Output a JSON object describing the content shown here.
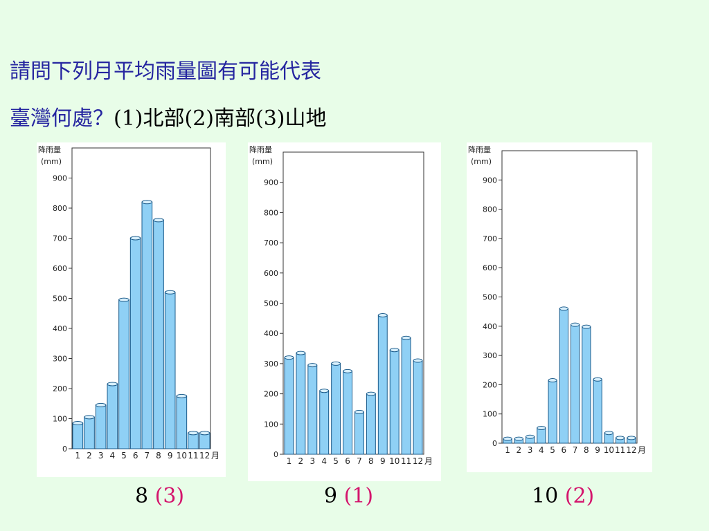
{
  "question": {
    "line1": "請問下列月平均雨量圖有可能代表",
    "line2_prefix": "臺灣何處？",
    "line2_rest": "(1)北部(2)南部(3)山地"
  },
  "answers": [
    {
      "num": "8",
      "choice": "(3)"
    },
    {
      "num": "9",
      "choice": "(1)"
    },
    {
      "num": "10",
      "choice": "(2)"
    }
  ],
  "colors": {
    "background": "#e8fde8",
    "question_text": "#2525a0",
    "answer_highlight": "#d4146c",
    "bar_fill": "#8fd0f5",
    "bar_top": "#d8f0fd"
  },
  "chart_data": [
    {
      "type": "bar",
      "ylabel": "降雨量",
      "yunit": "(mm)",
      "xunit": "月",
      "categories": [
        "1",
        "2",
        "3",
        "4",
        "5",
        "6",
        "7",
        "8",
        "9",
        "10",
        "11",
        "12"
      ],
      "values": [
        85,
        105,
        145,
        215,
        495,
        700,
        820,
        760,
        520,
        175,
        52,
        52
      ],
      "ylim": [
        0,
        1000
      ],
      "yticks": [
        0,
        100,
        200,
        300,
        400,
        500,
        600,
        700,
        800,
        900
      ]
    },
    {
      "type": "bar",
      "ylabel": "降雨量",
      "yunit": "(mm)",
      "xunit": "月",
      "categories": [
        "1",
        "2",
        "3",
        "4",
        "5",
        "6",
        "7",
        "8",
        "9",
        "10",
        "11",
        "12"
      ],
      "values": [
        320,
        335,
        295,
        210,
        300,
        275,
        140,
        200,
        460,
        345,
        385,
        310
      ],
      "ylim": [
        0,
        1000
      ],
      "yticks": [
        0,
        100,
        200,
        300,
        400,
        500,
        600,
        700,
        800,
        900
      ]
    },
    {
      "type": "bar",
      "ylabel": "降雨量",
      "yunit": "(mm)",
      "xunit": "月",
      "categories": [
        "1",
        "2",
        "3",
        "4",
        "5",
        "6",
        "7",
        "8",
        "9",
        "10",
        "11",
        "12"
      ],
      "values": [
        15,
        15,
        22,
        52,
        215,
        460,
        405,
        398,
        218,
        35,
        18,
        18
      ],
      "ylim": [
        0,
        1000
      ],
      "yticks": [
        0,
        100,
        200,
        300,
        400,
        500,
        600,
        700,
        800,
        900
      ]
    }
  ]
}
